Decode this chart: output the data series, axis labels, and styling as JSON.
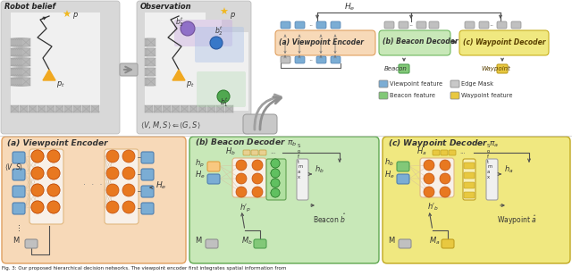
{
  "blue_box": "#7badd4",
  "orange_circle": "#e87820",
  "green_box": "#82c878",
  "yellow_box": "#e8c840",
  "gray_box": "#c0c0c0",
  "bg_color_a": "#f7d9b8",
  "bg_color_b": "#c8e8b8",
  "bg_color_c": "#f0e880",
  "map_bg": "#d8d8d8",
  "map_white": "#f0f0f0",
  "map_outer_bg": "#e8e8e8",
  "hatch_color": "#b8b8b8",
  "figure_bg": "#ffffff",
  "legend_items": [
    "Viewpoint feature",
    "Edge Mask",
    "Beacon feature",
    "Waypoint feature"
  ],
  "legend_colors": [
    "#7badd4",
    "#c8c8c8",
    "#82c878",
    "#e8c840"
  ]
}
